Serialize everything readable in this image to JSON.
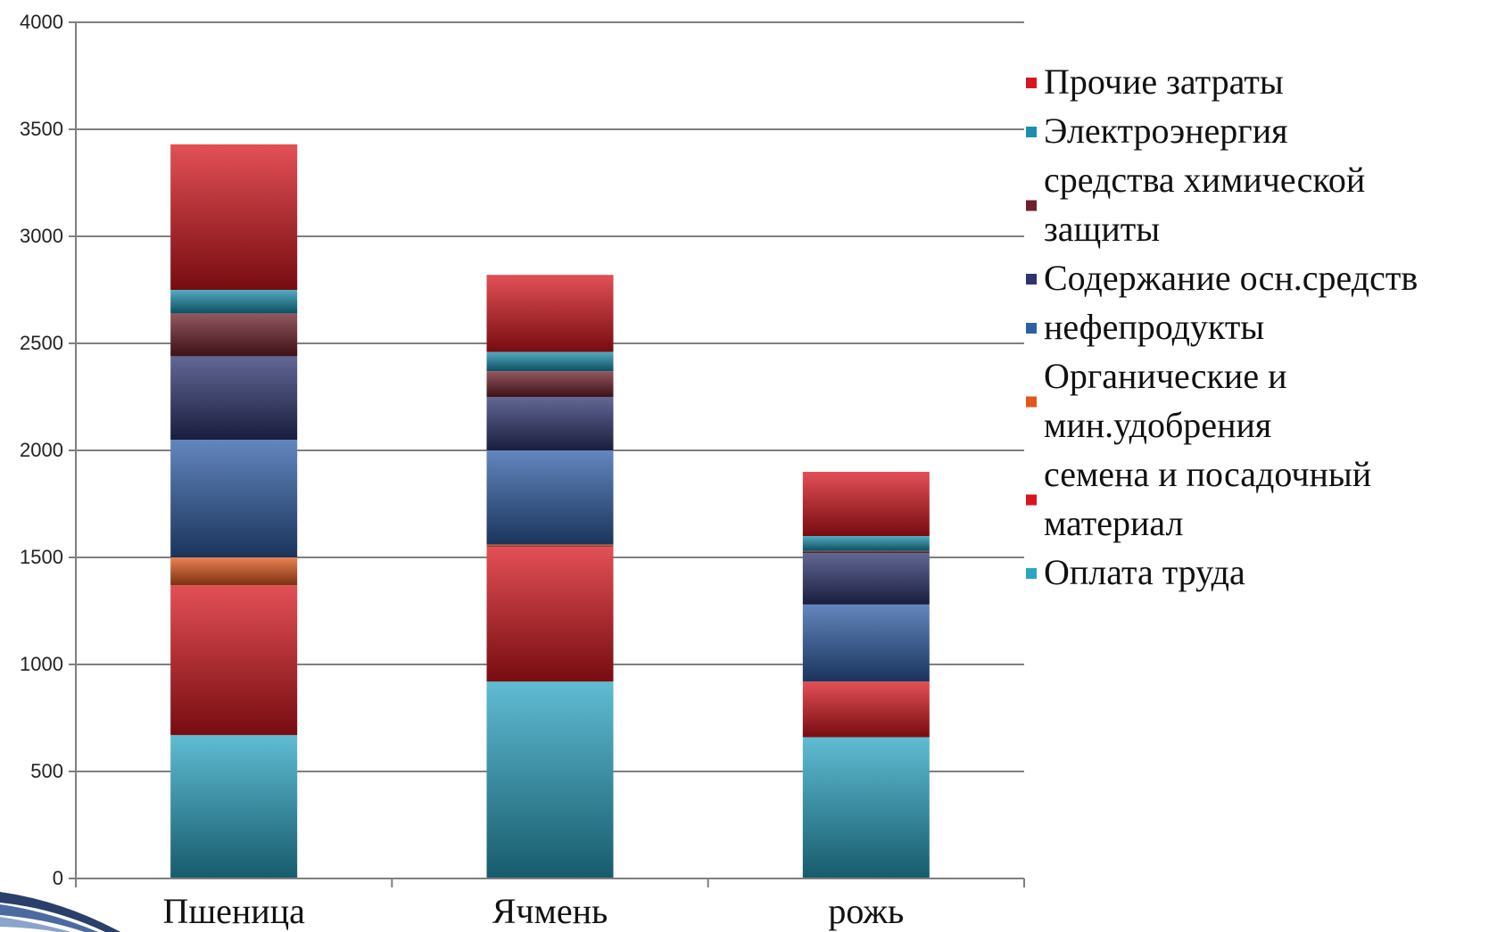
{
  "chart_data": {
    "type": "bar",
    "stacked": true,
    "categories": [
      "Пшеница",
      "Ячмень",
      "рожь"
    ],
    "ylim": [
      0,
      4000
    ],
    "yticks": [
      0,
      500,
      1000,
      1500,
      2000,
      2500,
      3000,
      3500,
      4000
    ],
    "grid": true,
    "legend_position": "right",
    "series": [
      {
        "name": "Оплата труда",
        "color": "#2aa6c4",
        "values": [
          670,
          920,
          660
        ]
      },
      {
        "name": "семена и посадочный материал",
        "color": "#d8151d",
        "values": [
          700,
          630,
          260
        ]
      },
      {
        "name": "Органические и мин.удобрения",
        "color": "#e2571a",
        "values": [
          130,
          10,
          0
        ]
      },
      {
        "name": "нефепродукты",
        "color": "#2f5ea8",
        "values": [
          550,
          440,
          360
        ]
      },
      {
        "name": "Содержание осн.средств",
        "color": "#2e3470",
        "values": [
          390,
          250,
          240
        ]
      },
      {
        "name": "средства химической защиты",
        "color": "#6e1f2a",
        "values": [
          200,
          120,
          10
        ]
      },
      {
        "name": "Электроэнергия",
        "color": "#1a8fae",
        "values": [
          110,
          90,
          70
        ]
      },
      {
        "name": "Прочие затраты",
        "color": "#d8151d",
        "values": [
          680,
          360,
          300
        ]
      }
    ]
  }
}
